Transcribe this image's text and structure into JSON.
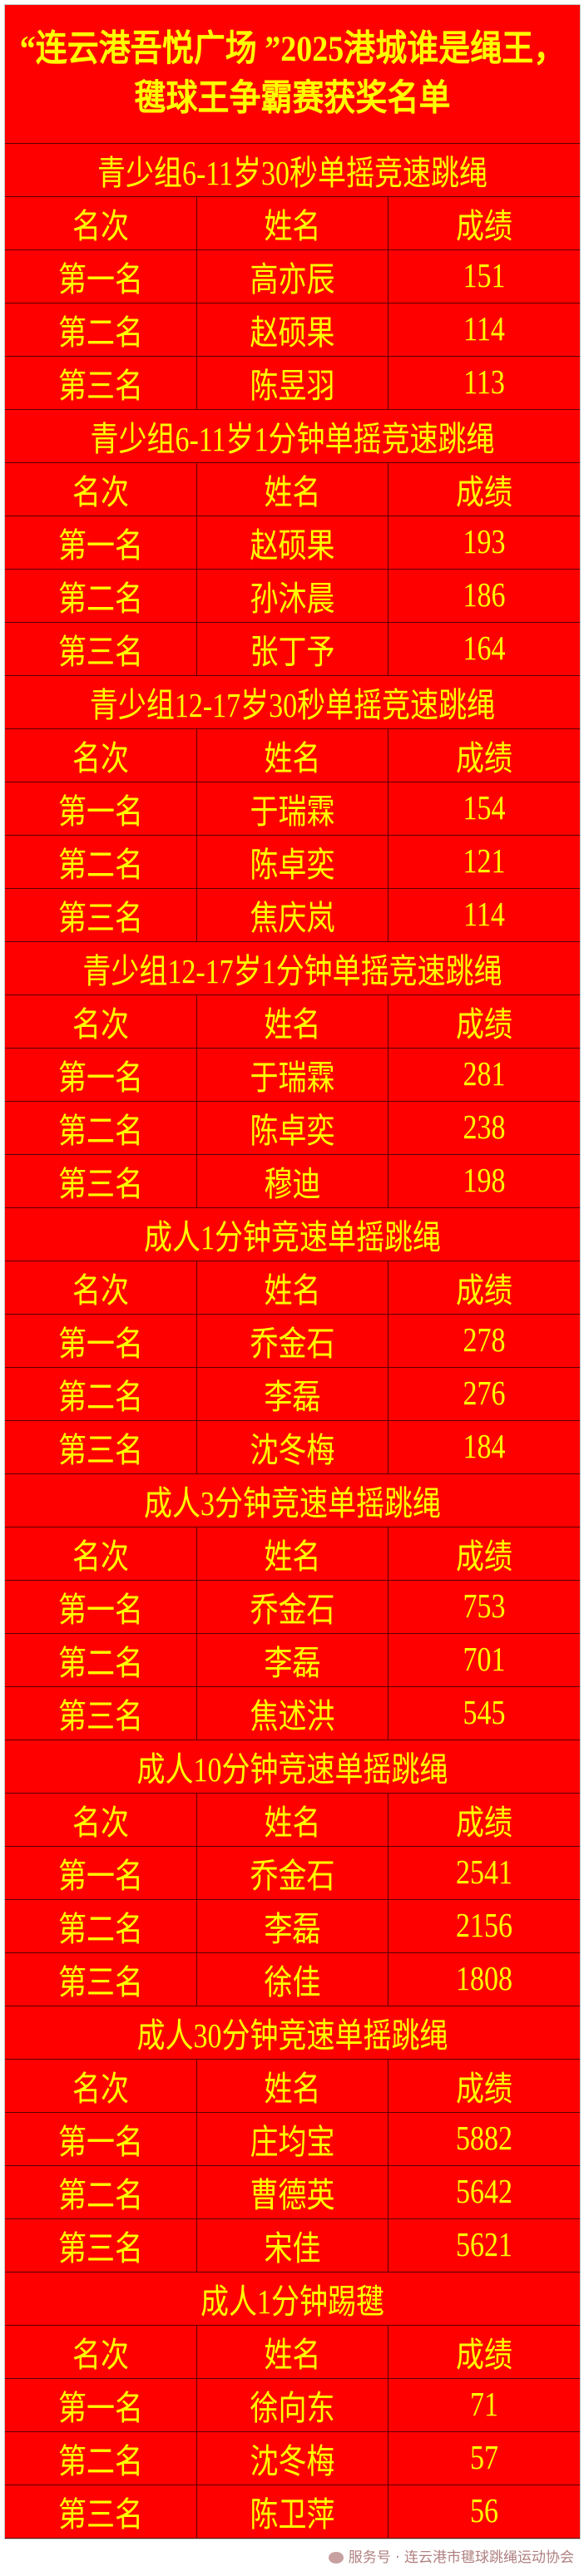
{
  "title": "“连云港吾悦广场 ”2025港城谁是绳王，毽球王争霸赛获奖名单",
  "columns": [
    "名次",
    "姓名",
    "成绩"
  ],
  "sections": [
    {
      "title": "青少组6-11岁30秒单摇竞速跳绳",
      "rows": [
        [
          "第一名",
          "高亦辰",
          "151"
        ],
        [
          "第二名",
          "赵硕果",
          "114"
        ],
        [
          "第三名",
          "陈昱羽",
          "113"
        ]
      ]
    },
    {
      "title": "青少组6-11岁1分钟单摇竞速跳绳",
      "rows": [
        [
          "第一名",
          "赵硕果",
          "193"
        ],
        [
          "第二名",
          "孙沐晨",
          "186"
        ],
        [
          "第三名",
          "张丁予",
          "164"
        ]
      ]
    },
    {
      "title": "青少组12-17岁30秒单摇竞速跳绳",
      "rows": [
        [
          "第一名",
          "于瑞霖",
          "154"
        ],
        [
          "第二名",
          "陈卓奕",
          "121"
        ],
        [
          "第三名",
          "焦庆岚",
          "114"
        ]
      ]
    },
    {
      "title": "青少组12-17岁1分钟单摇竞速跳绳",
      "rows": [
        [
          "第一名",
          "于瑞霖",
          "281"
        ],
        [
          "第二名",
          "陈卓奕",
          "238"
        ],
        [
          "第三名",
          "穆迪",
          "198"
        ]
      ]
    },
    {
      "title": "成人1分钟竞速单摇跳绳",
      "rows": [
        [
          "第一名",
          "乔金石",
          "278"
        ],
        [
          "第二名",
          "李磊",
          "276"
        ],
        [
          "第三名",
          "沈冬梅",
          "184"
        ]
      ]
    },
    {
      "title": "成人3分钟竞速单摇跳绳",
      "rows": [
        [
          "第一名",
          "乔金石",
          "753"
        ],
        [
          "第二名",
          "李磊",
          "701"
        ],
        [
          "第三名",
          "焦述洪",
          "545"
        ]
      ]
    },
    {
      "title": "成人10分钟竞速单摇跳绳",
      "rows": [
        [
          "第一名",
          "乔金石",
          "2541"
        ],
        [
          "第二名",
          "李磊",
          "2156"
        ],
        [
          "第三名",
          "徐佳",
          "1808"
        ]
      ]
    },
    {
      "title": "成人30分钟竞速单摇跳绳",
      "rows": [
        [
          "第一名",
          "庄均宝",
          "5882"
        ],
        [
          "第二名",
          "曹德英",
          "5642"
        ],
        [
          "第三名",
          "宋佳",
          "5621"
        ]
      ]
    },
    {
      "title": "成人1分钟踢毽",
      "rows": [
        [
          "第一名",
          "徐向东",
          "71"
        ],
        [
          "第二名",
          "沈冬梅",
          "57"
        ],
        [
          "第三名",
          "陈卫萍",
          "56"
        ]
      ]
    }
  ],
  "watermark": "服务号 · 连云港市毽球跳绳运动协会",
  "colors": {
    "background": "#ff0000",
    "text": "#ffff00",
    "border": "#5a0000"
  }
}
